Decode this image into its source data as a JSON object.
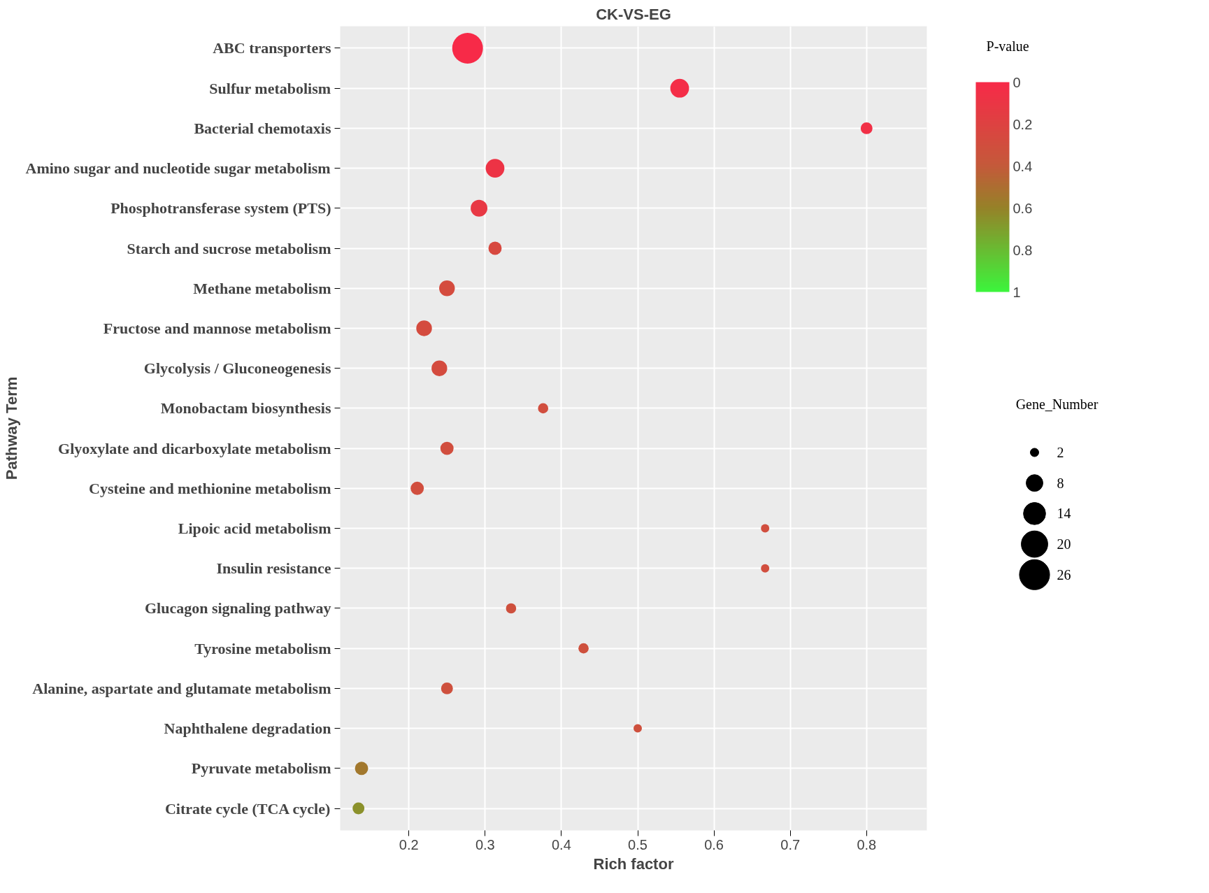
{
  "chart_data": {
    "type": "bubble",
    "title": "CK-VS-EG",
    "xlabel": "Rich factor",
    "ylabel": "Pathway Term",
    "clabel": "P-value",
    "legend_title": "Gene_Number",
    "categories": [
      "ABC transporters",
      "Sulfur metabolism",
      "Bacterial chemotaxis",
      "Amino sugar and nucleotide sugar metabolism",
      "Phosphotransferase system (PTS)",
      "Starch and sucrose metabolism",
      "Methane metabolism",
      "Fructose and mannose metabolism",
      "Glycolysis / Gluconeogenesis",
      "Monobactam biosynthesis",
      "Glyoxylate and dicarboxylate metabolism",
      "Cysteine and methionine metabolism",
      "Lipoic acid metabolism",
      "Insulin resistance",
      "Glucagon signaling pathway",
      "Tyrosine metabolism",
      "Alanine, aspartate and glutamate metabolism",
      "Naphthalene degradation",
      "Pyruvate metabolism",
      "Citrate cycle (TCA cycle)"
    ],
    "values": [
      0.277,
      0.555,
      0.8,
      0.313,
      0.292,
      0.313,
      0.25,
      0.22,
      0.24,
      0.376,
      0.25,
      0.211,
      0.667,
      0.667,
      0.334,
      0.429,
      0.25,
      0.5,
      0.138,
      0.134
    ],
    "sizes": [
      27,
      10,
      4,
      10,
      8,
      5,
      7,
      7,
      7,
      3,
      5,
      5,
      2,
      2,
      3,
      3,
      4,
      2,
      5,
      4
    ],
    "cvalues": [
      0.0,
      0.03,
      0.05,
      0.08,
      0.12,
      0.25,
      0.28,
      0.28,
      0.28,
      0.3,
      0.3,
      0.3,
      0.3,
      0.3,
      0.32,
      0.32,
      0.32,
      0.32,
      0.55,
      0.65
    ],
    "size_legend": [
      2,
      8,
      14,
      20,
      26
    ],
    "clim": [
      0,
      1
    ],
    "cticks": [
      0,
      0.2,
      0.4,
      0.6,
      0.8,
      1
    ],
    "xlim": [
      0.11,
      0.879
    ],
    "xticks": [
      0.2,
      0.3,
      0.4,
      0.5,
      0.6,
      0.7,
      0.8
    ],
    "grid": true,
    "orientation": "horizontal"
  }
}
